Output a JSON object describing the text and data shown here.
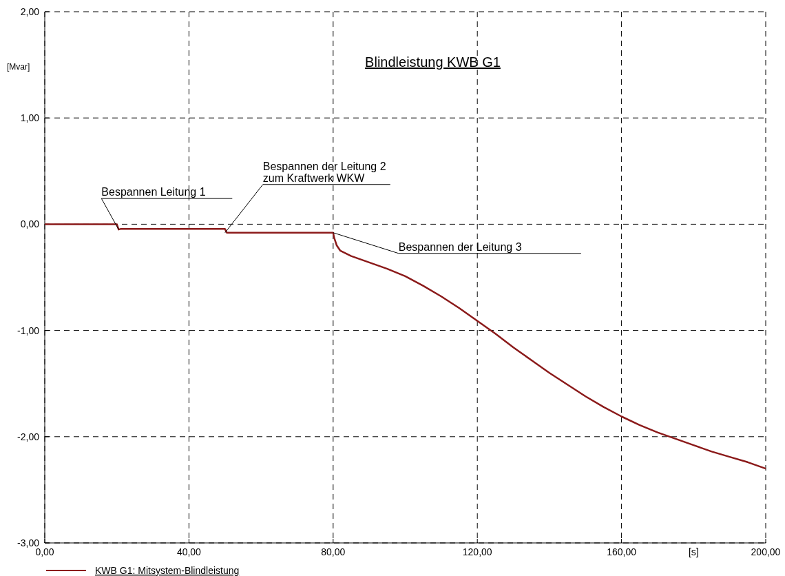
{
  "chart_data": {
    "type": "line",
    "title": "Blindleistung KWB G1",
    "xlabel": "[s]",
    "ylabel": "[Mvar]",
    "x": [
      0,
      20,
      20.5,
      21,
      50,
      50.5,
      80,
      80.3,
      81,
      82,
      85,
      90,
      95,
      100,
      105,
      110,
      115,
      120,
      125,
      130,
      135,
      140,
      145,
      150,
      155,
      160,
      165,
      170,
      175,
      180,
      185,
      190,
      195,
      200
    ],
    "series": [
      {
        "name": "KWB G1: Mitsystem-Blindleistung",
        "color": "#8b1a1a",
        "values": [
          0,
          0,
          -0.05,
          -0.045,
          -0.045,
          -0.08,
          -0.08,
          -0.13,
          -0.2,
          -0.25,
          -0.3,
          -0.36,
          -0.42,
          -0.49,
          -0.58,
          -0.68,
          -0.79,
          -0.91,
          -1.03,
          -1.16,
          -1.28,
          -1.4,
          -1.51,
          -1.62,
          -1.72,
          -1.81,
          -1.89,
          -1.96,
          -2.02,
          -2.08,
          -2.14,
          -2.19,
          -2.24,
          -2.3
        ]
      }
    ],
    "xlim": [
      0,
      200
    ],
    "ylim": [
      -3,
      2
    ],
    "xticks": [
      {
        "value": 0,
        "label": "0,00"
      },
      {
        "value": 40,
        "label": "40,00"
      },
      {
        "value": 80,
        "label": "80,00"
      },
      {
        "value": 120,
        "label": "120,00"
      },
      {
        "value": 160,
        "label": "160,00"
      },
      {
        "value": 200,
        "label": "200,00"
      }
    ],
    "yticks": [
      {
        "value": -3,
        "label": "-3,00"
      },
      {
        "value": -2,
        "label": "-2,00"
      },
      {
        "value": -1,
        "label": "-1,00"
      },
      {
        "value": 0,
        "label": "0,00"
      },
      {
        "value": 1,
        "label": "1,00"
      },
      {
        "value": 2,
        "label": "2,00"
      }
    ],
    "grid": true,
    "legend": "bottom left",
    "line_style": "solid",
    "marker": "none",
    "annotations": [
      {
        "text": "Bespannen Leitung 1",
        "x": 20.5,
        "y": -0.05
      },
      {
        "text": "Bespannen der Leitung 2\nzum Kraftwerk WKW",
        "x": 50,
        "y": -0.08
      },
      {
        "text": "Bespannen der Leitung 3",
        "x": 80,
        "y": -0.08
      }
    ]
  }
}
